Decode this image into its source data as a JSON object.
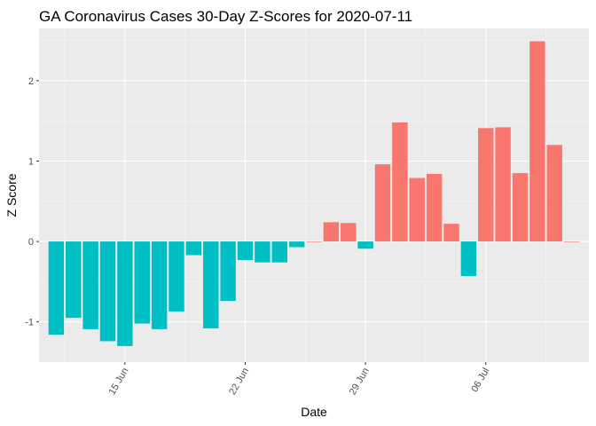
{
  "chart_data": {
    "type": "bar",
    "title": "GA Coronavirus Cases 30-Day Z-Scores for 2020-07-11",
    "xlabel": "Date",
    "ylabel": "Z Score",
    "x": [
      "2020-06-11",
      "2020-06-12",
      "2020-06-13",
      "2020-06-14",
      "2020-06-15",
      "2020-06-16",
      "2020-06-17",
      "2020-06-18",
      "2020-06-19",
      "2020-06-20",
      "2020-06-21",
      "2020-06-22",
      "2020-06-23",
      "2020-06-24",
      "2020-06-25",
      "2020-06-26",
      "2020-06-27",
      "2020-06-28",
      "2020-06-29",
      "2020-06-30",
      "2020-07-01",
      "2020-07-02",
      "2020-07-03",
      "2020-07-04",
      "2020-07-05",
      "2020-07-06",
      "2020-07-07",
      "2020-07-08",
      "2020-07-09",
      "2020-07-10",
      "2020-07-11"
    ],
    "values": [
      -1.16,
      -0.95,
      -1.09,
      -1.24,
      -1.3,
      -1.02,
      -1.09,
      -0.87,
      -0.17,
      -1.08,
      -0.74,
      -0.23,
      -0.26,
      -0.26,
      -0.07,
      0.0,
      0.24,
      0.23,
      -0.09,
      0.96,
      1.48,
      0.79,
      0.84,
      0.22,
      -0.43,
      1.41,
      1.42,
      0.85,
      2.49,
      1.2,
      0.0
    ],
    "x_ticks": [
      {
        "label": "15 Jun",
        "date": "2020-06-15"
      },
      {
        "label": "22 Jun",
        "date": "2020-06-22"
      },
      {
        "label": "29 Jun",
        "date": "2020-06-29"
      },
      {
        "label": "06 Jul",
        "date": "2020-07-06"
      }
    ],
    "y_ticks": [
      -1,
      0,
      1,
      2
    ],
    "ylim": [
      -1.5,
      2.65
    ],
    "xlim": [
      "2020-06-10",
      "2020-07-12"
    ],
    "grid": true,
    "legend": "none",
    "colors": {
      "positive": "#F8766D",
      "negative": "#00BFC4",
      "panel": "#EBEBEB",
      "grid_major": "#FFFFFF",
      "grid_minor": "#F5F5F5"
    }
  }
}
